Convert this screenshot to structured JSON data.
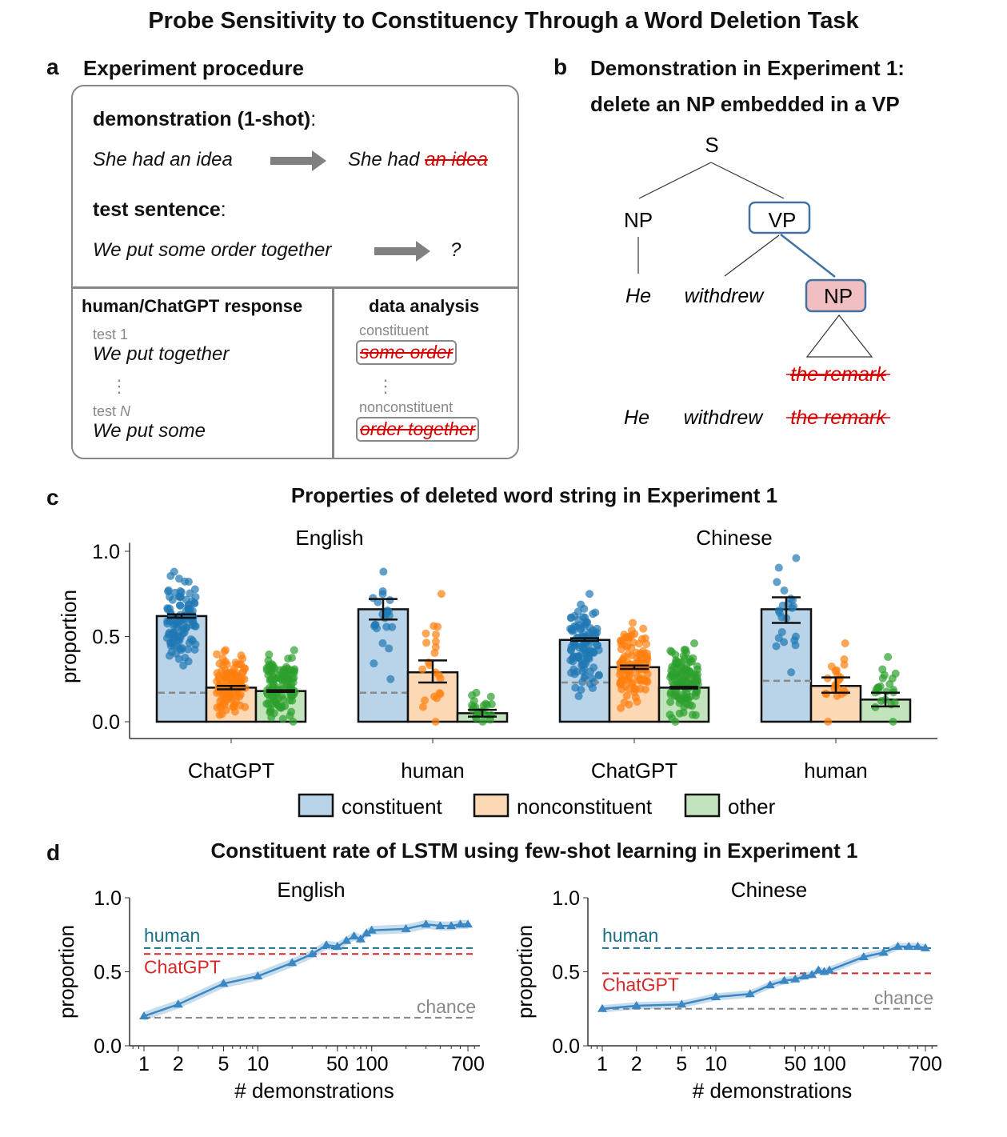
{
  "title": "Probe Sensitivity to Constituency Through a Word Deletion Task",
  "panel_a": {
    "letter": "a",
    "heading": "Experiment procedure",
    "demo_label": "demonstration (1-shot)",
    "colon": ":",
    "demo_sentence": "She had an idea",
    "demo_kept": "She had",
    "demo_deleted": "an idea",
    "test_label": "test sentence",
    "test_sentence": "We put some order together",
    "test_result": "?",
    "response_header": "human/ChatGPT response",
    "test1": "test 1",
    "test1_resp": "We put together",
    "dots": "⋮",
    "testN_prefix": "test ",
    "testN_var": "N",
    "testN_resp": "We put some",
    "analysis_header": "data analysis",
    "constituent": "constituent",
    "constituent_str": "some order",
    "nonconstituent": "nonconstituent",
    "nonconstituent_str": "order together"
  },
  "panel_b": {
    "letter": "b",
    "heading_line1": "Demonstration in Experiment 1:",
    "heading_line2": "delete an NP embedded in a VP",
    "S": "S",
    "NP1": "NP",
    "VP": "VP",
    "NP2": "NP",
    "he": "He",
    "withdrew": "withdrew",
    "remark": "the remark"
  },
  "colors": {
    "constituent": "#1f77b4",
    "nonconstituent": "#ff7f0e",
    "other": "#2ca02c",
    "human": "#1b6f8a",
    "chatgpt": "#d62728",
    "chance": "#888888",
    "deleted": "#d40000"
  },
  "chart_data": [
    {
      "type": "bar",
      "letter": "c",
      "title": "Properties of deleted word string in Experiment 1",
      "ylabel": "proportion",
      "ylim": [
        0,
        1
      ],
      "yticks": [
        "0.0",
        "0.5",
        "1.0"
      ],
      "legend": [
        "constituent",
        "nonconstituent",
        "other"
      ],
      "legend_placement": "bottom",
      "panels": [
        {
          "name": "English",
          "groups": [
            {
              "label": "ChatGPT",
              "chance": 0.17,
              "bars": [
                {
                  "value": 0.62,
                  "err": [
                    0.61,
                    0.63
                  ],
                  "dots": [
                    0.33,
                    0.88
                  ]
                },
                {
                  "value": 0.2,
                  "err": [
                    0.19,
                    0.21
                  ],
                  "dots": [
                    0.04,
                    0.42
                  ]
                },
                {
                  "value": 0.18,
                  "err": [
                    0.175,
                    0.185
                  ],
                  "dots": [
                    0.0,
                    0.42
                  ]
                }
              ]
            },
            {
              "label": "human",
              "chance": 0.17,
              "bars": [
                {
                  "value": 0.66,
                  "err": [
                    0.6,
                    0.72
                  ],
                  "dots": [
                    0.25,
                    0.88
                  ]
                },
                {
                  "value": 0.29,
                  "err": [
                    0.23,
                    0.36
                  ],
                  "dots": [
                    0.0,
                    0.75
                  ]
                },
                {
                  "value": 0.05,
                  "err": [
                    0.03,
                    0.07
                  ],
                  "dots": [
                    0.0,
                    0.17
                  ]
                }
              ]
            }
          ]
        },
        {
          "name": "Chinese",
          "groups": [
            {
              "label": "ChatGPT",
              "chance": 0.23,
              "bars": [
                {
                  "value": 0.48,
                  "err": [
                    0.475,
                    0.49
                  ],
                  "dots": [
                    0.15,
                    0.75
                  ]
                },
                {
                  "value": 0.32,
                  "err": [
                    0.31,
                    0.33
                  ],
                  "dots": [
                    0.08,
                    0.58
                  ]
                },
                {
                  "value": 0.2,
                  "err": [
                    0.195,
                    0.205
                  ],
                  "dots": [
                    0.0,
                    0.46
                  ]
                }
              ]
            },
            {
              "label": "human",
              "chance": 0.24,
              "bars": [
                {
                  "value": 0.66,
                  "err": [
                    0.58,
                    0.73
                  ],
                  "dots": [
                    0.29,
                    0.96
                  ]
                },
                {
                  "value": 0.21,
                  "err": [
                    0.17,
                    0.26
                  ],
                  "dots": [
                    0.0,
                    0.46
                  ]
                },
                {
                  "value": 0.13,
                  "err": [
                    0.09,
                    0.17
                  ],
                  "dots": [
                    0.0,
                    0.38
                  ]
                }
              ]
            }
          ]
        }
      ]
    },
    {
      "type": "line",
      "letter": "d",
      "title": "Constituent rate of LSTM using few-shot learning in Experiment 1",
      "xlabel": "# demonstrations",
      "ylabel": "proportion",
      "xscale": "log",
      "ylim": [
        0,
        1
      ],
      "yticks": [
        "0.0",
        "0.5",
        "1.0"
      ],
      "xticks": [
        "1",
        "2",
        "5",
        "10",
        "50",
        "100",
        "700"
      ],
      "panels": [
        {
          "name": "English",
          "human": 0.66,
          "chatgpt": 0.62,
          "chance": 0.19,
          "human_label": "human",
          "chatgpt_label": "ChatGPT",
          "chance_label": "chance",
          "x": [
            1,
            2,
            5,
            10,
            20,
            30,
            40,
            50,
            60,
            70,
            80,
            90,
            100,
            200,
            300,
            400,
            500,
            600,
            700
          ],
          "y": [
            0.2,
            0.28,
            0.42,
            0.47,
            0.56,
            0.62,
            0.68,
            0.67,
            0.71,
            0.74,
            0.72,
            0.76,
            0.78,
            0.79,
            0.82,
            0.81,
            0.81,
            0.82,
            0.82
          ],
          "band": 0.03
        },
        {
          "name": "Chinese",
          "human": 0.66,
          "chatgpt": 0.49,
          "chance": 0.25,
          "human_label": "human",
          "chatgpt_label": "ChatGPT",
          "chance_label": "chance",
          "x": [
            1,
            2,
            5,
            10,
            20,
            30,
            40,
            50,
            60,
            70,
            80,
            90,
            100,
            200,
            300,
            400,
            500,
            600,
            700
          ],
          "y": [
            0.25,
            0.27,
            0.28,
            0.33,
            0.35,
            0.41,
            0.44,
            0.45,
            0.47,
            0.48,
            0.51,
            0.5,
            0.51,
            0.6,
            0.63,
            0.67,
            0.67,
            0.67,
            0.66
          ],
          "band": 0.025
        }
      ]
    }
  ]
}
